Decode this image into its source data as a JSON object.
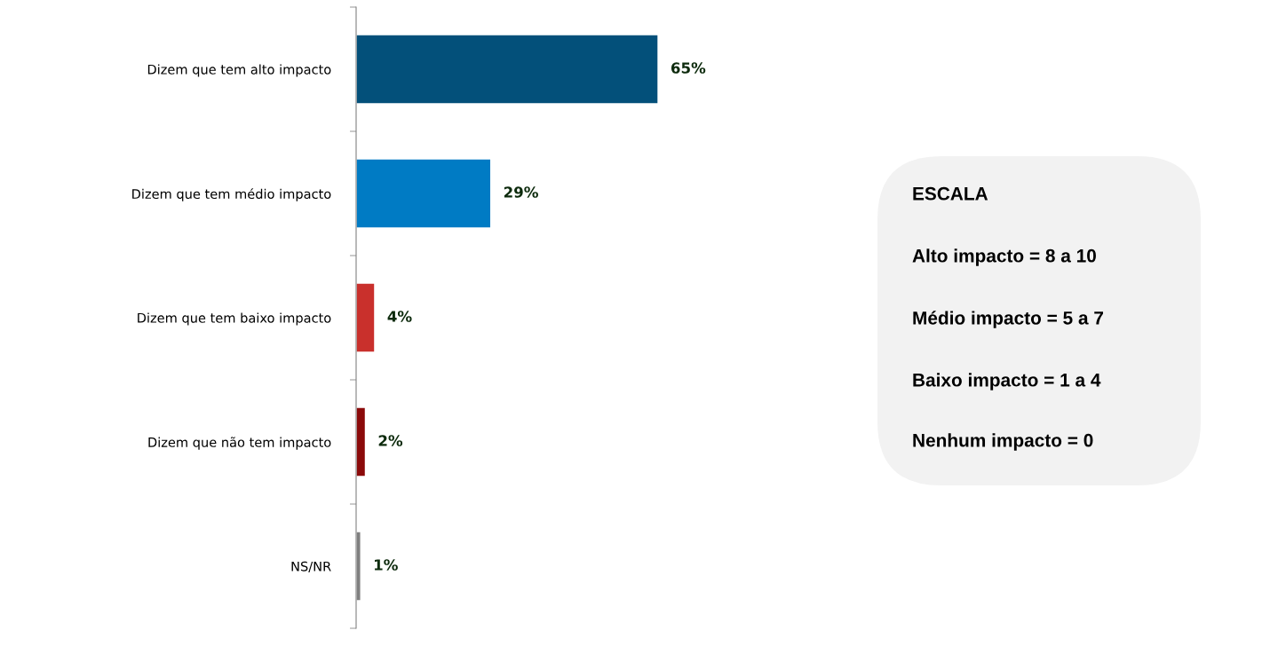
{
  "chart_data": {
    "type": "bar",
    "orientation": "horizontal",
    "categories": [
      "Dizem que tem alto impacto",
      "Dizem que tem médio impacto",
      "Dizem que tem baixo impacto",
      "Dizem que não tem impacto",
      "NS/NR"
    ],
    "values": [
      65,
      29,
      4,
      2,
      1
    ],
    "colors": [
      "#03507a",
      "#007bc4",
      "#c9302c",
      "#8b0a0a",
      "#7f7f7f"
    ],
    "value_labels": [
      "65%",
      "29%",
      "4%",
      "2%",
      "1%"
    ],
    "annotations": [
      "ESCALA",
      "Alto impacto = 8 a 10",
      "Médio impacto = 5 a 7",
      "Baixo impacto = 1 a 4",
      "Nenhum impacto = 0"
    ],
    "grid": false,
    "legend": false
  }
}
